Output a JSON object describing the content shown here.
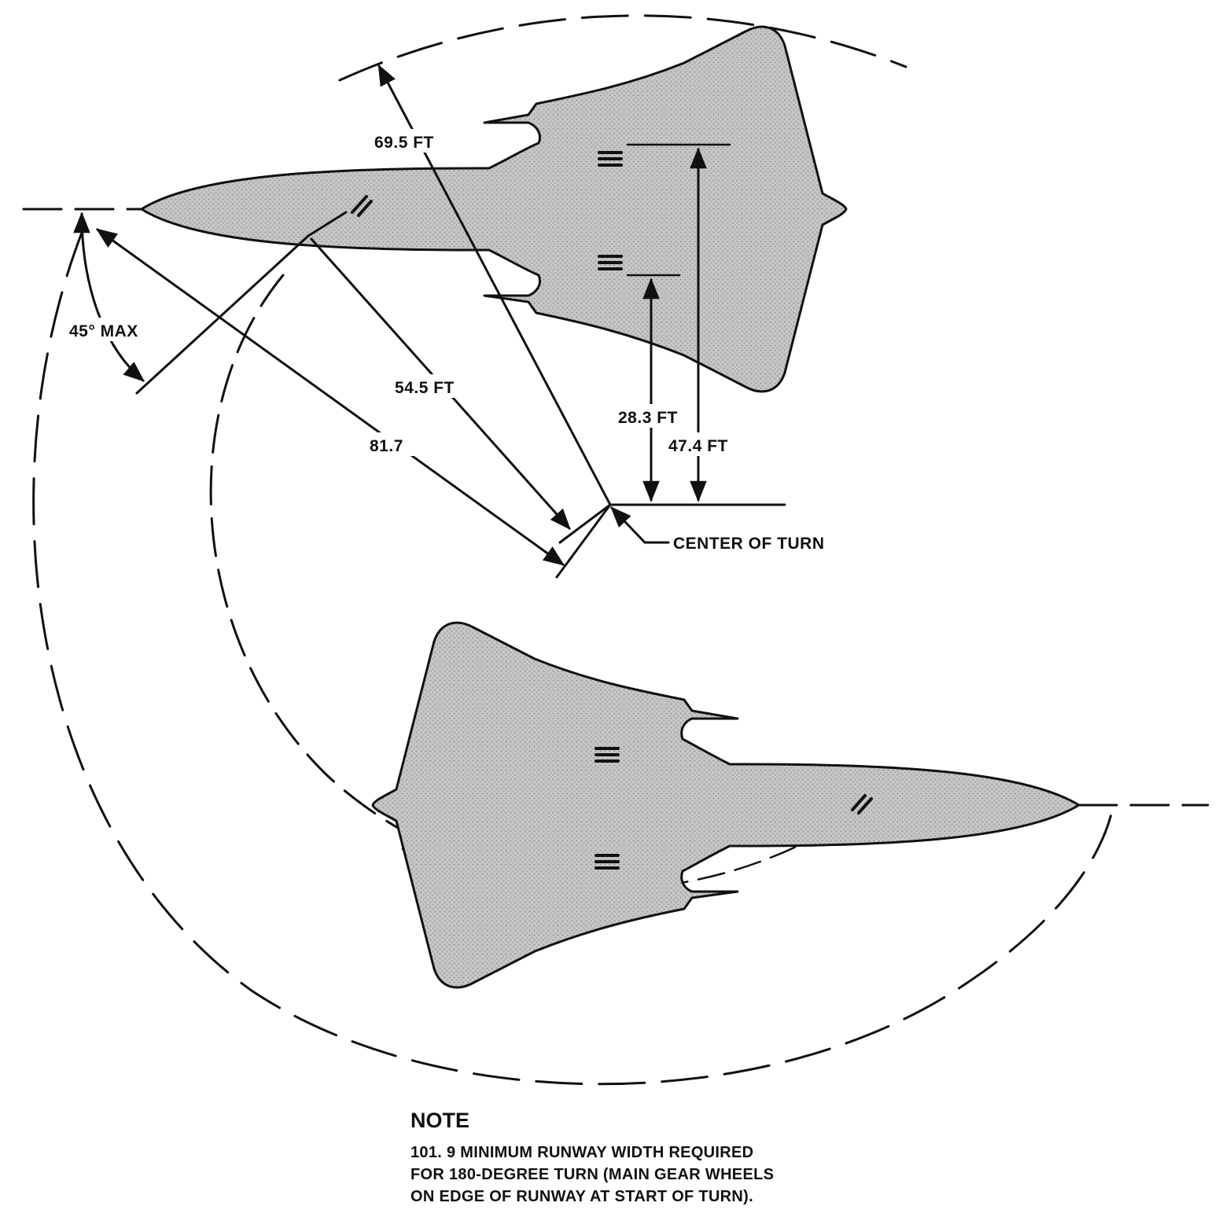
{
  "dimensions": {
    "radius_nose": "69.5 FT",
    "radius_outer_gear": "47.4 FT",
    "radius_inner_gear": "28.3 FT",
    "radius_nose_gear": "54.5 FT",
    "radius_wingtip": "81.7",
    "nose_gear_angle": "45° MAX"
  },
  "labels": {
    "center_of_turn": "CENTER OF TURN"
  },
  "note": {
    "heading": "NOTE",
    "lines": [
      "101. 9 MINIMUM RUNWAY WIDTH REQUIRED",
      "FOR 180-DEGREE TURN (MAIN GEAR WHEELS",
      "ON EDGE OF RUNWAY AT START OF TURN)."
    ]
  }
}
